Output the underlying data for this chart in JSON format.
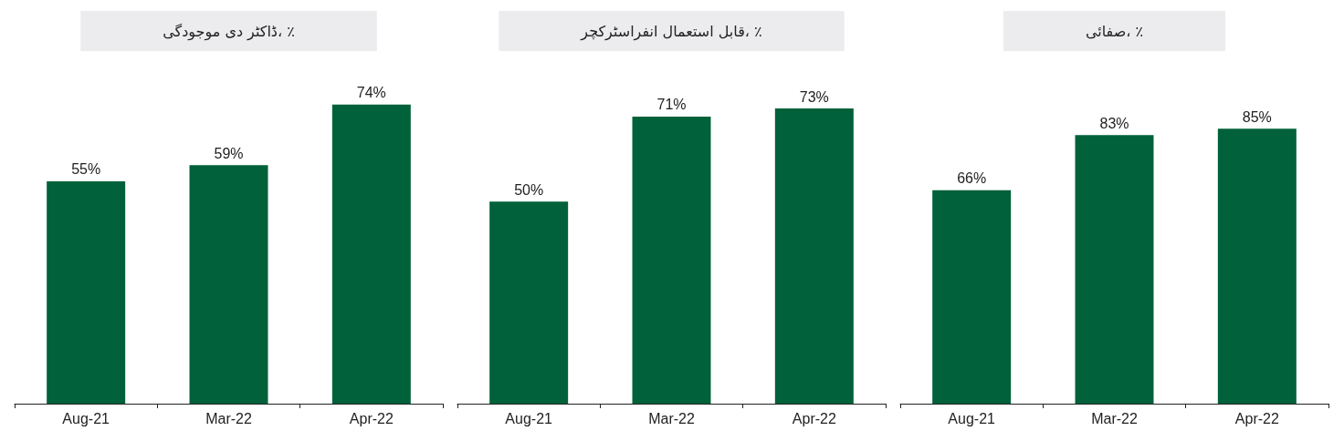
{
  "chart_data": [
    {
      "type": "bar",
      "title": "ڈاکٹر دی موجودگی، ٪",
      "categories": [
        "Aug-21",
        "Mar-22",
        "Apr-22"
      ],
      "values": [
        55,
        59,
        74
      ],
      "value_labels": [
        "55%",
        "59%",
        "74%"
      ],
      "color": "#00613a"
    },
    {
      "type": "bar",
      "title": "قابل استعمال انفراسٹرکچر، ٪",
      "categories": [
        "Aug-21",
        "Mar-22",
        "Apr-22"
      ],
      "values": [
        50,
        71,
        73
      ],
      "value_labels": [
        "50%",
        "71%",
        "73%"
      ],
      "color": "#00613a"
    },
    {
      "type": "bar",
      "title": "صفائی، ٪",
      "categories": [
        "Aug-21",
        "Mar-22",
        "Apr-22"
      ],
      "values": [
        66,
        83,
        85
      ],
      "value_labels": [
        "66%",
        "83%",
        "85%"
      ],
      "color": "#00613a"
    }
  ]
}
